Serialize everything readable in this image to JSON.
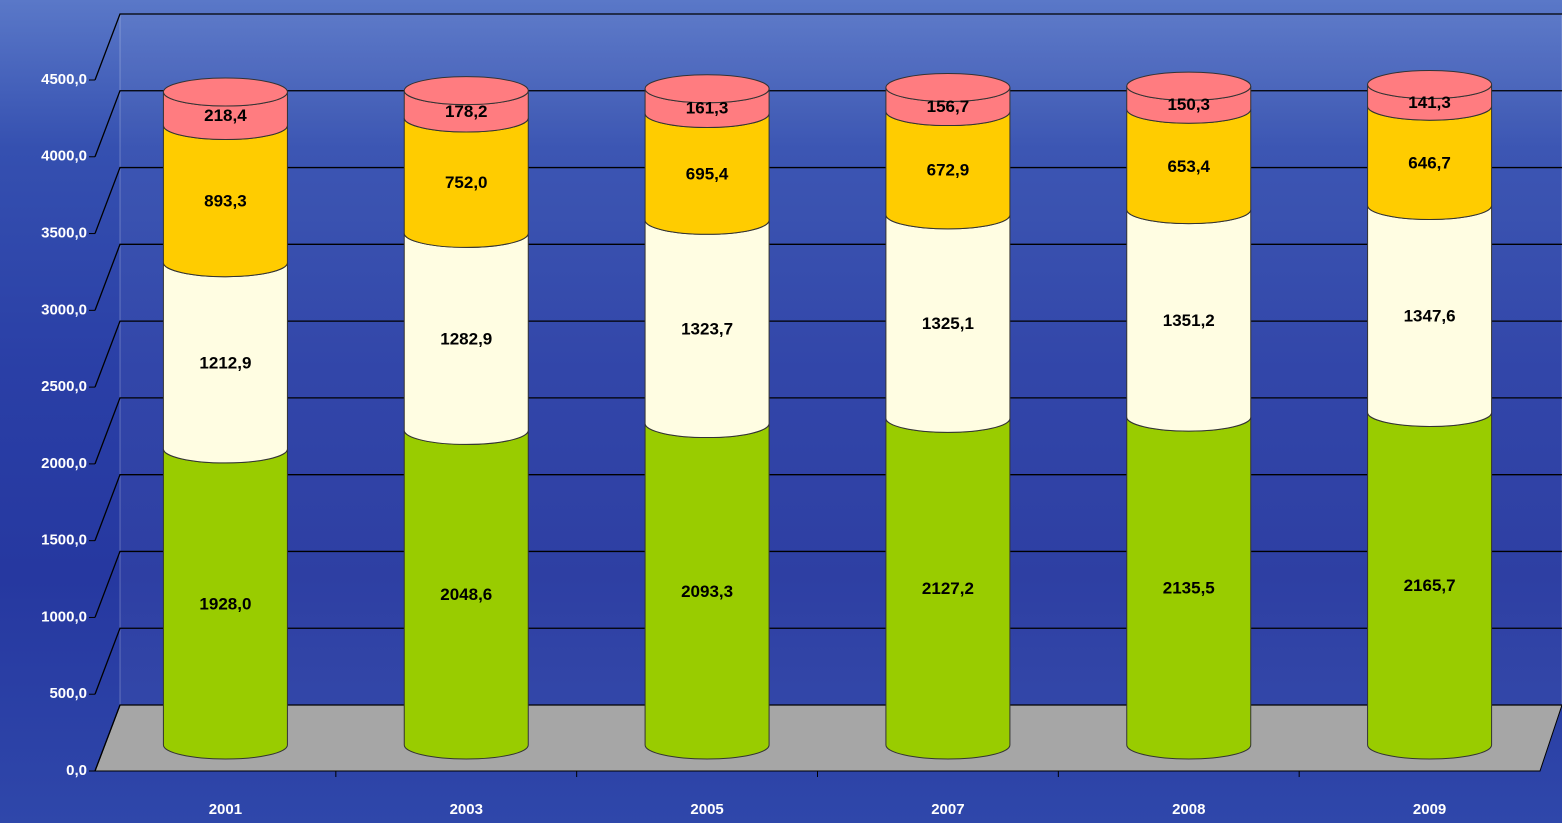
{
  "chart_data": {
    "type": "stacked-cylinder",
    "categories": [
      "2001",
      "2003",
      "2005",
      "2007",
      "2008",
      "2009"
    ],
    "series": [
      {
        "color": "#99cc00",
        "values": [
          1928.0,
          2048.6,
          2093.3,
          2127.2,
          2135.5,
          2165.7
        ],
        "value_labels": [
          "1928,0",
          "2048,6",
          "2093,3",
          "2127,2",
          "2135,5",
          "2165,7"
        ]
      },
      {
        "color": "#fffde2",
        "values": [
          1212.9,
          1282.9,
          1323.7,
          1325.1,
          1351.2,
          1347.6
        ],
        "value_labels": [
          "1212,9",
          "1282,9",
          "1323,7",
          "1325,1",
          "1351,2",
          "1347,6"
        ]
      },
      {
        "color": "#ffcc00",
        "values": [
          893.3,
          752.0,
          695.4,
          672.9,
          653.4,
          646.7
        ],
        "value_labels": [
          "893,3",
          "752,0",
          "695,4",
          "672,9",
          "653,4",
          "646,7"
        ]
      },
      {
        "color": "#ff7c80",
        "values": [
          218.4,
          178.2,
          161.3,
          156.7,
          150.3,
          141.3
        ],
        "value_labels": [
          "218,4",
          "178,2",
          "161,3",
          "156,7",
          "150,3",
          "141,3"
        ]
      }
    ],
    "ylim": [
      0,
      4500
    ],
    "yticks": [
      {
        "value": 0,
        "label": "0,0"
      },
      {
        "value": 500,
        "label": "500,0"
      },
      {
        "value": 1000,
        "label": "1000,0"
      },
      {
        "value": 1500,
        "label": "1500,0"
      },
      {
        "value": 2000,
        "label": "2000,0"
      },
      {
        "value": 2500,
        "label": "2500,0"
      },
      {
        "value": 3000,
        "label": "3000,0"
      },
      {
        "value": 3500,
        "label": "3500,0"
      },
      {
        "value": 4000,
        "label": "4000,0"
      },
      {
        "value": 4500,
        "label": "4500,0"
      }
    ],
    "grid": true
  }
}
